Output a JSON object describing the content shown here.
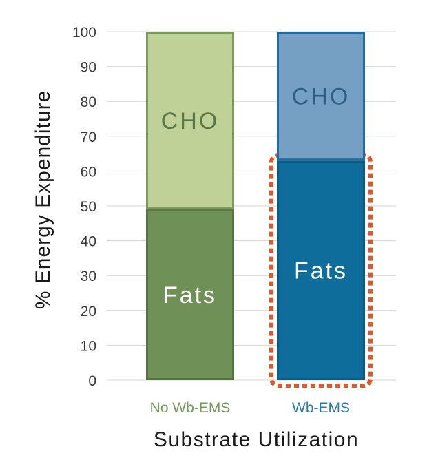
{
  "chart_data": {
    "type": "bar",
    "stacked": true,
    "categories": [
      "No Wb-EMS",
      "Wb-EMS"
    ],
    "series": [
      {
        "name": "Fats",
        "values": [
          49,
          63
        ]
      },
      {
        "name": "CHO",
        "values": [
          51,
          37
        ]
      }
    ],
    "title": "",
    "xlabel": "Substrate Utilization",
    "ylabel": "% Energy Expenditure",
    "ylim": [
      0,
      100
    ],
    "yticks": [
      0,
      10,
      20,
      30,
      40,
      50,
      60,
      70,
      80,
      90,
      100
    ],
    "grid": true,
    "highlight": {
      "category": "Wb-EMS",
      "series": "Fats",
      "style": "dotted",
      "color": "#e0572a"
    },
    "colors": {
      "No Wb-EMS": {
        "Fats": "#6f9158",
        "CHO": "#c0d197",
        "Fats_border": "#557446",
        "CHO_border": "#7b9a60",
        "Fats_text": "#ffffff",
        "CHO_text": "#5b7446",
        "category_text": "#759a5b"
      },
      "Wb-EMS": {
        "Fats": "#0f6d9c",
        "CHO": "#75a0c3",
        "Fats_border": "#0d5a82",
        "CHO_border": "#1d6da0",
        "Fats_text": "#ffffff",
        "CHO_text": "#2d5f85",
        "category_text": "#2a7aa6"
      }
    }
  }
}
